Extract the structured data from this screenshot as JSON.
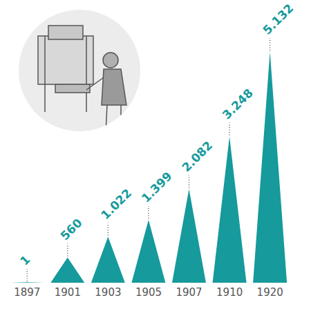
{
  "chart_data": {
    "type": "bar",
    "categories": [
      "1897",
      "1901",
      "1903",
      "1905",
      "1907",
      "1910",
      "1920"
    ],
    "values": [
      1,
      560,
      1022,
      1399,
      2082,
      3248,
      5132
    ],
    "value_labels": [
      "1",
      "560",
      "1.022",
      "1.399",
      "2.082",
      "3.248",
      "5.132"
    ],
    "color": "#169a9c",
    "marker": "triangle",
    "ylim": [
      0,
      5132
    ],
    "data_labels": true,
    "tick_labels": "x",
    "grid": false
  }
}
